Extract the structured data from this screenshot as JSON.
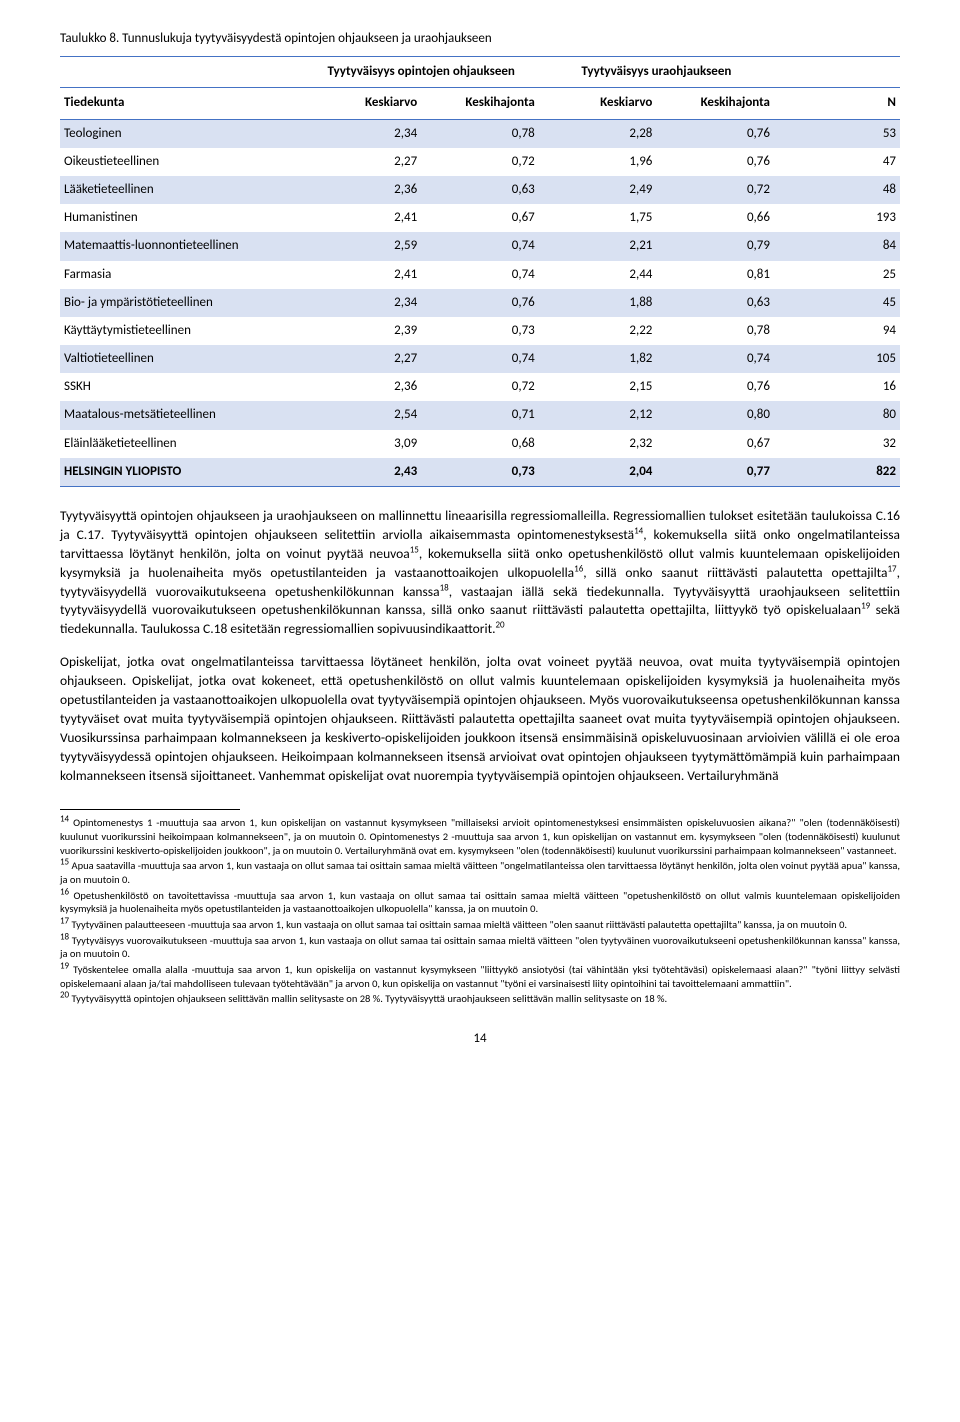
{
  "table": {
    "title": "Taulukko 8. Tunnuslukuja tyytyväisyydestä opintojen ohjaukseen ja uraohjaukseen",
    "group_headers": [
      "",
      "Tyytyväisyys opintojen ohjaukseen",
      "Tyytyväisyys uraohjaukseen",
      ""
    ],
    "headers": [
      "Tiedekunta",
      "Keskiarvo",
      "Keskihajonta",
      "Keskiarvo",
      "Keskihajonta",
      "N"
    ],
    "rows": [
      {
        "c0": "Teologinen",
        "c1": "2,34",
        "c2": "0,78",
        "c3": "2,28",
        "c4": "0,76",
        "c5": "53"
      },
      {
        "c0": "Oikeustieteellinen",
        "c1": "2,27",
        "c2": "0,72",
        "c3": "1,96",
        "c4": "0,76",
        "c5": "47"
      },
      {
        "c0": "Lääketieteellinen",
        "c1": "2,36",
        "c2": "0,63",
        "c3": "2,49",
        "c4": "0,72",
        "c5": "48"
      },
      {
        "c0": "Humanistinen",
        "c1": "2,41",
        "c2": "0,67",
        "c3": "1,75",
        "c4": "0,66",
        "c5": "193"
      },
      {
        "c0": "Matemaattis-luonnontieteellinen",
        "c1": "2,59",
        "c2": "0,74",
        "c3": "2,21",
        "c4": "0,79",
        "c5": "84"
      },
      {
        "c0": "Farmasia",
        "c1": "2,41",
        "c2": "0,74",
        "c3": "2,44",
        "c4": "0,81",
        "c5": "25"
      },
      {
        "c0": "Bio- ja ympäristötieteellinen",
        "c1": "2,34",
        "c2": "0,76",
        "c3": "1,88",
        "c4": "0,63",
        "c5": "45"
      },
      {
        "c0": "Käyttäytymistieteellinen",
        "c1": "2,39",
        "c2": "0,73",
        "c3": "2,22",
        "c4": "0,78",
        "c5": "94"
      },
      {
        "c0": "Valtiotieteellinen",
        "c1": "2,27",
        "c2": "0,74",
        "c3": "1,82",
        "c4": "0,74",
        "c5": "105"
      },
      {
        "c0": "SSKH",
        "c1": "2,36",
        "c2": "0,72",
        "c3": "2,15",
        "c4": "0,76",
        "c5": "16"
      },
      {
        "c0": "Maatalous-metsätieteellinen",
        "c1": "2,54",
        "c2": "0,71",
        "c3": "2,12",
        "c4": "0,80",
        "c5": "80"
      },
      {
        "c0": "Eläinlääketieteellinen",
        "c1": "3,09",
        "c2": "0,68",
        "c3": "2,32",
        "c4": "0,67",
        "c5": "32"
      }
    ],
    "total": {
      "c0": "HELSINGIN YLIOPISTO",
      "c1": "2,43",
      "c2": "0,73",
      "c3": "2,04",
      "c4": "0,77",
      "c5": "822"
    }
  },
  "paragraphs": {
    "p1a": "Tyytyväisyyttä opintojen ohjaukseen ja uraohjaukseen on mallinnettu lineaarisilla regressiomalleilla. Regressiomallien tulokset esitetään taulukoissa C.16 ja C.17. Tyytyväisyyttä opintojen ohjaukseen selitettiin arviolla aikaisemmasta opintomenestyksestä",
    "p1b": ", kokemuksella siitä onko ongelmatilanteissa tarvittaessa löytänyt henkilön, jolta on voinut pyytää neuvoa",
    "p1c": ", kokemuksella siitä onko opetushenkilöstö ollut valmis kuuntelemaan opiskelijoiden kysymyksiä ja huolenaiheita myös opetustilanteiden ja vastaanottoaikojen ulkopuolella",
    "p1d": ", sillä onko saanut riittävästi palautetta opettajilta",
    "p1e": ", tyytyväisyydellä vuorovaikutukseena opetushenkilökunnan kanssa",
    "p1f": ", vastaajan iällä sekä tiedekunnalla. Tyytyväisyyttä uraohjaukseen selitettiin tyytyväisyydellä vuorovaikutukseen opetushenkilökunnan kanssa, sillä onko saanut riittävästi palautetta opettajilta, liittyykö työ opiskelualaan",
    "p1g": " sekä tiedekunnalla. Taulukossa C.18 esitetään regressiomallien sopivuusindikaattorit.",
    "p2": "Opiskelijat, jotka ovat ongelmatilanteissa tarvittaessa löytäneet henkilön, jolta ovat voineet pyytää neuvoa, ovat muita tyytyväisempiä opintojen ohjaukseen. Opiskelijat, jotka ovat kokeneet, että opetushenkilöstö on ollut valmis kuuntelemaan opiskelijoiden kysymyksiä ja huolenaiheita myös opetustilanteiden ja vastaanottoaikojen ulkopuolella ovat tyytyväisempiä opintojen ohjaukseen. Myös vuorovaikutukseensa opetushenkilökunnan kanssa tyytyväiset ovat muita tyytyväisempiä opintojen ohjaukseen. Riittävästi palautetta opettajilta saaneet ovat muita tyytyväisempiä opintojen ohjaukseen. Vuosikurssinsa parhaimpaan kolmannekseen ja keskiverto-opiskelijoiden joukkoon itsensä ensimmäisinä opiskeluvuosinaan arvioivien välillä ei ole eroa tyytyväisyydessä opintojen ohjaukseen. Heikoimpaan kolmannekseen itsensä arvioivat ovat opintojen ohjaukseen tyytymättömämpiä kuin parhaimpaan kolmannekseen itsensä sijoittaneet. Vanhemmat opiskelijat ovat nuorempia tyytyväisempiä opintojen ohjaukseen. Vertailuryhmänä"
  },
  "footnotes": {
    "f14": " Opintomenestys 1 -muuttuja saa arvon 1, kun opiskelijan on vastannut kysymykseen \"millaiseksi arvioit opintomenestyksesi ensimmäisten opiskeluvuosien aikana?\" \"olen (todennäköisesti) kuulunut vuorikurssini heikoimpaan kolmannekseen\", ja on muutoin 0. Opintomenestys 2 -muuttuja saa arvon 1, kun opiskelijan on vastannut em. kysymykseen \"olen (todennäköisesti) kuulunut vuorikurssini keskiverto-opiskelijoiden joukkoon\", ja on muutoin 0. Vertailuryhmänä ovat em. kysymykseen \"olen (todennäköisesti) kuulunut vuorikurssini parhaimpaan kolmannekseen\" vastanneet.",
    "f15": " Apua saatavilla -muuttuja saa arvon 1, kun vastaaja on ollut samaa tai osittain samaa mieltä väitteen \"ongelmatilanteissa olen tarvittaessa löytänyt henkilön, jolta olen voinut pyytää apua\" kanssa, ja on muutoin 0.",
    "f16": " Opetushenkilöstö on tavoitettavissa -muuttuja saa arvon 1, kun vastaaja on ollut samaa tai osittain samaa mieltä väitteen \"opetushenkilöstö on ollut valmis kuuntelemaan opiskelijoiden kysymyksiä ja huolenaiheita myös opetustilanteiden ja vastaanottoaikojen ulkopuolella\" kanssa, ja on muutoin 0.",
    "f17": " Tyytyväinen palautteeseen -muuttuja saa arvon 1, kun vastaaja on ollut samaa tai osittain samaa mieltä väitteen \"olen saanut riittävästi palautetta opettajilta\" kanssa, ja on muutoin 0.",
    "f18": " Tyytyväisyys vuorovaikutukseen -muuttuja saa arvon 1, kun vastaaja on ollut samaa tai osittain samaa mieltä väitteen \"olen tyytyväinen vuorovaikutukseeni opetushenkilökunnan kanssa\" kanssa, ja on muutoin 0.",
    "f19": " Työskentelee omalla alalla -muuttuja saa arvon 1, kun opiskelija on vastannut kysymykseen \"liittyykö ansiotyösi (tai vähintään yksi työtehtäväsi) opiskelemaasi alaan?\" \"työni liittyy selvästi opiskelemaani alaan ja/tai mahdolliseen tulevaan työtehtävään\" ja arvon 0, kun opiskelija on vastannut \"työni ei varsinaisesti liity opintoihini tai tavoittelemaani ammattiin\".",
    "f20": " Tyytyväisyyttä opintojen ohjaukseen selittävän mallin selitysaste on 28 %. Tyytyväisyyttä uraohjaukseen selittävän mallin selitysaste on 18 %."
  },
  "page_number": "14"
}
